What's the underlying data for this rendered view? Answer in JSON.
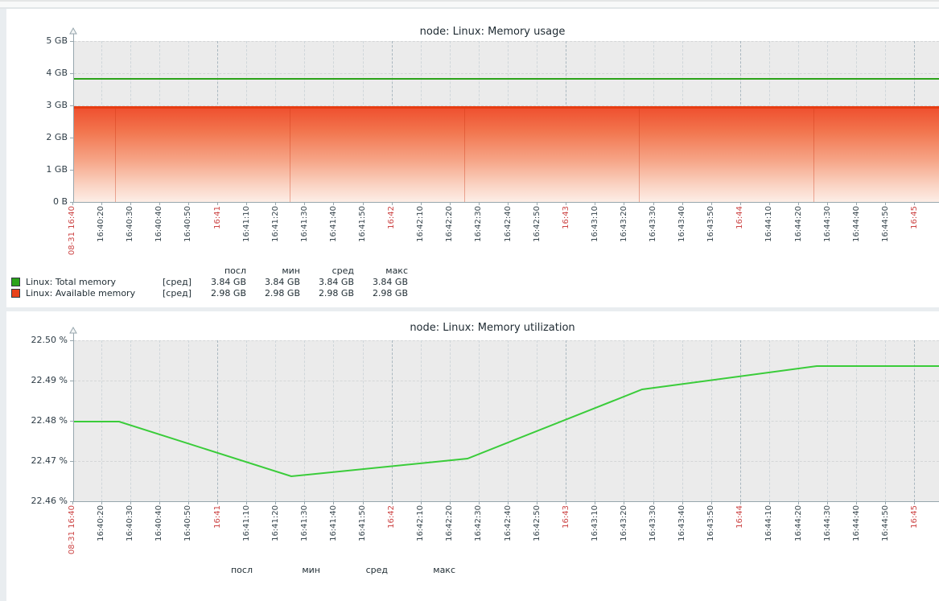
{
  "page": {
    "background_color": "#e9edf0",
    "panel_color": "#ffffff",
    "plot_background": "#ebebeb",
    "axis_color": "#97a6ad",
    "red_label_color": "#cc4444"
  },
  "x_axis_labels": [
    {
      "t": "08-31 16:40",
      "red": true
    },
    {
      "t": "16:40:20",
      "red": false
    },
    {
      "t": "16:40:30",
      "red": false
    },
    {
      "t": "16:40:40",
      "red": false
    },
    {
      "t": "16:40:50",
      "red": false
    },
    {
      "t": "16:41",
      "red": true
    },
    {
      "t": "16:41:10",
      "red": false
    },
    {
      "t": "16:41:20",
      "red": false
    },
    {
      "t": "16:41:30",
      "red": false
    },
    {
      "t": "16:41:40",
      "red": false
    },
    {
      "t": "16:41:50",
      "red": false
    },
    {
      "t": "16:42",
      "red": true
    },
    {
      "t": "16:42:10",
      "red": false
    },
    {
      "t": "16:42:20",
      "red": false
    },
    {
      "t": "16:42:30",
      "red": false
    },
    {
      "t": "16:42:40",
      "red": false
    },
    {
      "t": "16:42:50",
      "red": false
    },
    {
      "t": "16:43",
      "red": true
    },
    {
      "t": "16:43:10",
      "red": false
    },
    {
      "t": "16:43:20",
      "red": false
    },
    {
      "t": "16:43:30",
      "red": false
    },
    {
      "t": "16:43:40",
      "red": false
    },
    {
      "t": "16:43:50",
      "red": false
    },
    {
      "t": "16:44",
      "red": true
    },
    {
      "t": "16:44:10",
      "red": false
    },
    {
      "t": "16:44:20",
      "red": false
    },
    {
      "t": "16:44:30",
      "red": false
    },
    {
      "t": "16:44:40",
      "red": false
    },
    {
      "t": "16:44:50",
      "red": false
    },
    {
      "t": "16:45",
      "red": true
    }
  ],
  "charts": [
    {
      "title": "node: Linux: Memory usage",
      "y_axis_labels": [
        "5 GB",
        "4 GB",
        "3 GB",
        "2 GB",
        "1 GB",
        "0 B"
      ],
      "legend": {
        "headers": [
          "посл",
          "мин",
          "сред",
          "макс"
        ],
        "rows": [
          {
            "color": "#2ba319",
            "label": "Linux: Total memory",
            "agg": "[сред]",
            "values": [
              "3.84 GB",
              "3.84 GB",
              "3.84 GB",
              "3.84 GB"
            ]
          },
          {
            "color": "#e8421a",
            "label": "Linux: Available memory",
            "agg": "[сред]",
            "values": [
              "2.98 GB",
              "2.98 GB",
              "2.98 GB",
              "2.98 GB"
            ]
          }
        ]
      },
      "chart_data": {
        "type": "line",
        "title": "node: Linux: Memory usage",
        "x_range": [
          "08-31 16:40:10",
          "16:45"
        ],
        "x_tick_interval_seconds": 10,
        "ylabel": "",
        "ylim": [
          "0 B",
          "5 GB"
        ],
        "grid": true,
        "series": [
          {
            "name": "Linux: Total memory",
            "color": "#2ba319",
            "style": "line",
            "constant_value_gb": 3.84
          },
          {
            "name": "Linux: Available memory",
            "color": "#e8421a",
            "style": "gradient-area",
            "constant_value_gb": 2.98
          }
        ]
      }
    },
    {
      "title": "node: Linux: Memory utilization",
      "y_axis_labels": [
        "22.50 %",
        "22.49 %",
        "22.48 %",
        "22.47 %",
        "22.46 %"
      ],
      "legend": {
        "headers": [
          "посл",
          "мин",
          "сред",
          "макс"
        ],
        "rows": []
      },
      "chart_data": {
        "type": "line",
        "title": "node: Linux: Memory utilization",
        "x_range": [
          "08-31 16:40:10",
          "16:45"
        ],
        "x_tick_interval_seconds": 10,
        "unit": "%",
        "ylim": [
          22.46,
          22.5
        ],
        "grid": true,
        "series": [
          {
            "name": "Linux: Memory utilization",
            "color": "#3acc3a",
            "style": "line",
            "points": [
              [
                "16:40:10",
                22.48
              ],
              [
                "16:40:26",
                22.48
              ],
              [
                "16:41:25",
                22.466
              ],
              [
                "16:42:26",
                22.471
              ],
              [
                "16:43:26",
                22.488
              ],
              [
                "16:44:26",
                22.494
              ],
              [
                "16:45:10",
                22.494
              ]
            ]
          }
        ]
      }
    }
  ]
}
